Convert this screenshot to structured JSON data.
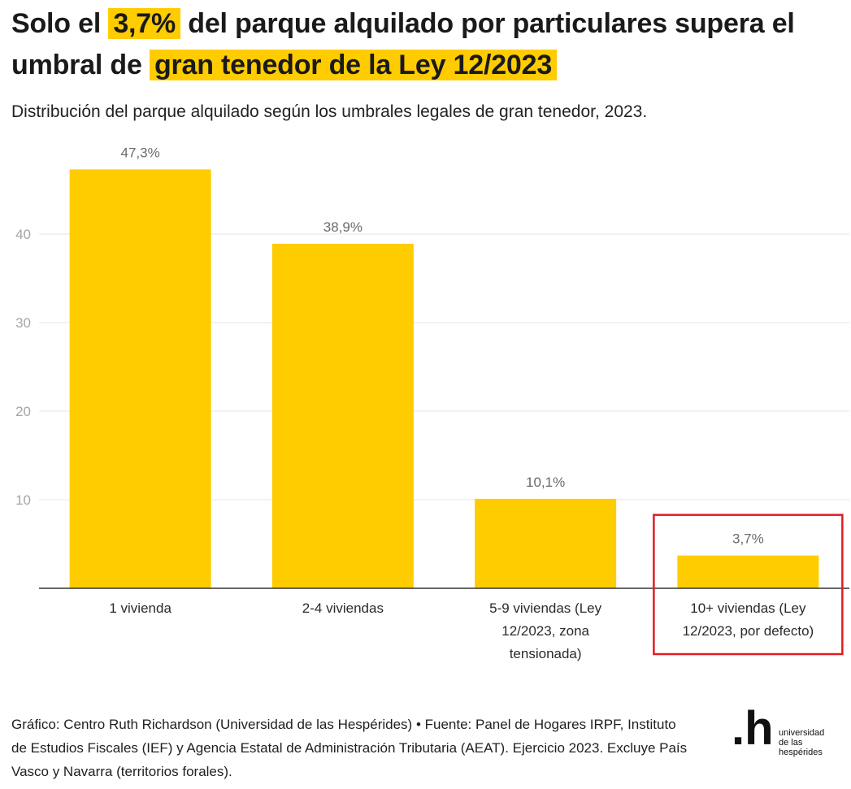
{
  "header": {
    "title_part1": "Solo el",
    "title_hl1": "3,7%",
    "title_part2": "del parque alquilado por particulares supera el umbral de",
    "title_hl2": "gran tenedor de la Ley 12/2023",
    "subtitle": "Distribución del parque alquilado según los umbrales legales de gran tenedor, 2023."
  },
  "chart_data": {
    "type": "bar",
    "categories": [
      [
        "1 vivienda"
      ],
      [
        "2-4 viviendas"
      ],
      [
        "5-9 viviendas (Ley",
        "12/2023, zona",
        "tensionada)"
      ],
      [
        "10+ viviendas (Ley",
        "12/2023, por defecto)"
      ]
    ],
    "values": [
      47.3,
      38.9,
      10.1,
      3.7
    ],
    "value_labels": [
      "47,3%",
      "38,9%",
      "10,1%",
      "3,7%"
    ],
    "yticks": [
      10,
      20,
      30,
      40
    ],
    "ylim": [
      0,
      50
    ],
    "highlighted_category_index": 3,
    "bar_color": "#ffcc00",
    "highlight_color": "#e11a22",
    "grid": true
  },
  "footer": {
    "text": "Gráfico: Centro Ruth Richardson (Universidad de las Hespérides) • Fuente: Panel de Hogares IRPF, Instituto de Estudios Fiscales (IEF) y Agencia Estatal de Administración Tributaria (AEAT). Ejercicio 2023. Excluye País Vasco y Navarra (territorios forales)."
  },
  "logo": {
    "mark": ".h",
    "lines": [
      "universidad",
      "de las",
      "hespérides"
    ]
  }
}
